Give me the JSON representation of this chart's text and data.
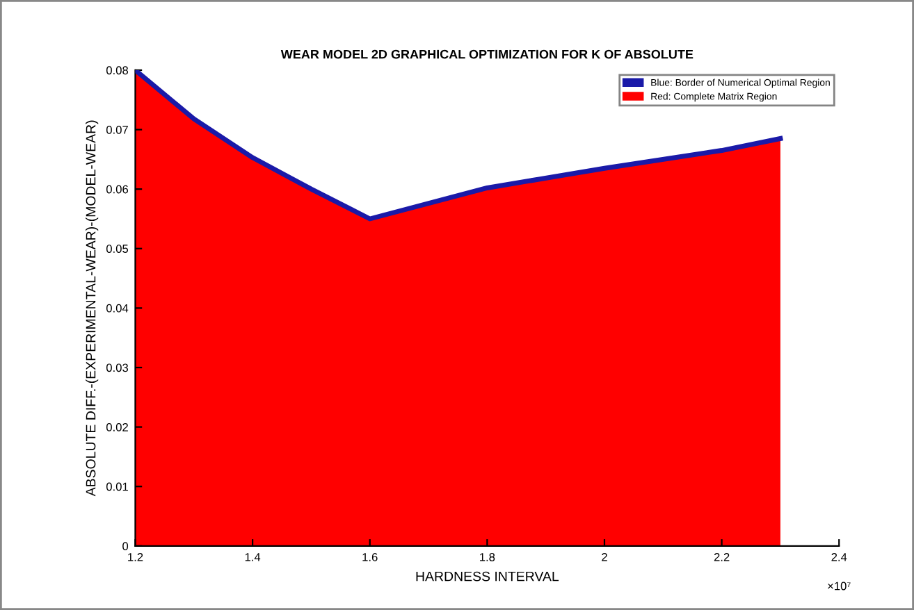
{
  "chart_data": {
    "type": "area",
    "title": "WEAR MODEL 2D GRAPHICAL OPTIMIZATION FOR K OF ABSOLUTE",
    "xlabel": "HARDNESS INTERVAL",
    "ylabel": "ABSOLUTE DIFF.-(EXPERIMENTAL-WEAR)-(MODEL-WEAR)",
    "x": [
      1.2,
      1.3,
      1.4,
      1.5,
      1.6,
      1.8,
      2.0,
      2.2,
      2.3
    ],
    "series": [
      {
        "name": "Blue: Border of Numerical Optimal Region",
        "color": "#1a1aa8",
        "type": "line",
        "values": [
          0.08,
          0.0718,
          0.0653,
          0.06,
          0.055,
          0.0602,
          0.0635,
          0.0665,
          0.0685
        ]
      },
      {
        "name": "Red: Complete Matrix Region",
        "color": "#ff0000",
        "values": [
          0.08,
          0.0718,
          0.0653,
          0.06,
          0.055,
          0.0602,
          0.0635,
          0.0665,
          0.0685
        ]
      }
    ],
    "xlim": [
      1.2,
      2.4
    ],
    "ylim": [
      0,
      0.08
    ],
    "xticks": [
      1.2,
      1.4,
      1.6,
      1.8,
      2,
      2.2,
      2.4
    ],
    "yticks": [
      0,
      0.01,
      0.02,
      0.03,
      0.04,
      0.05,
      0.06,
      0.07,
      0.08
    ],
    "annotations": [
      "×10⁷"
    ],
    "legend": "top right",
    "grid": false
  }
}
